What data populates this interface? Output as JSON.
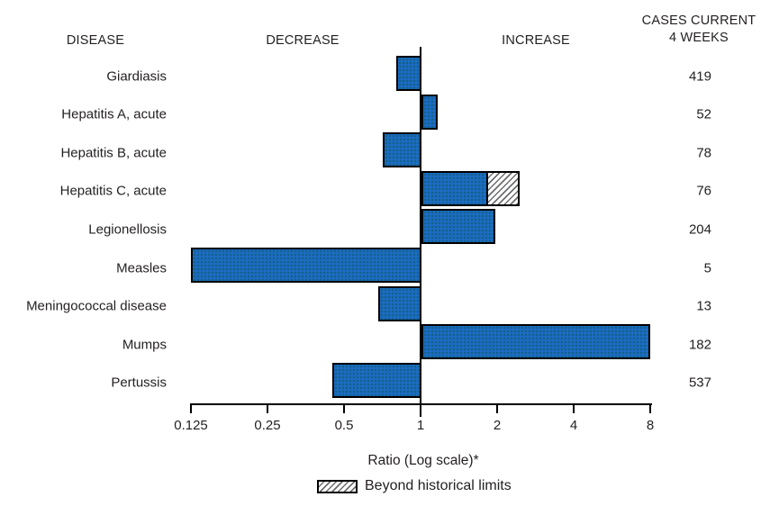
{
  "header": {
    "disease": "DISEASE",
    "decrease": "DECREASE",
    "increase": "INCREASE",
    "cases_line1": "CASES CURRENT",
    "cases_line2": "4 WEEKS"
  },
  "axis": {
    "label": "Ratio (Log scale)*",
    "tick_labels": [
      "0.125",
      "0.25",
      "0.5",
      "1",
      "2",
      "4",
      "8"
    ]
  },
  "legend": {
    "label": "Beyond historical limits"
  },
  "colors": {
    "bar_fill": "#1b6cc2",
    "bar_border": "#000000",
    "text": "#231f20"
  },
  "chart_data": {
    "type": "bar",
    "orientation": "horizontal",
    "scale": "log2",
    "xlabel": "Ratio (Log scale)*",
    "xticks": [
      0.125,
      0.25,
      0.5,
      1,
      2,
      4,
      8
    ],
    "xlim": [
      0.125,
      8
    ],
    "baseline": 1,
    "legend_entries": [
      "Beyond historical limits"
    ],
    "rows": [
      {
        "disease": "Giardiasis",
        "ratio": 0.8,
        "cases": 419,
        "beyond_limit": false,
        "beyond_limit_to": null
      },
      {
        "disease": "Hepatitis A, acute",
        "ratio": 1.17,
        "cases": 52,
        "beyond_limit": false,
        "beyond_limit_to": null
      },
      {
        "disease": "Hepatitis B, acute",
        "ratio": 0.71,
        "cases": 78,
        "beyond_limit": false,
        "beyond_limit_to": null
      },
      {
        "disease": "Hepatitis C, acute",
        "ratio": 1.85,
        "cases": 76,
        "beyond_limit": true,
        "beyond_limit_to": 2.45
      },
      {
        "disease": "Legionellosis",
        "ratio": 1.97,
        "cases": 204,
        "beyond_limit": false,
        "beyond_limit_to": null
      },
      {
        "disease": "Measles",
        "ratio": 0.125,
        "cases": 5,
        "beyond_limit": false,
        "beyond_limit_to": null
      },
      {
        "disease": "Meningococcal disease",
        "ratio": 0.68,
        "cases": 13,
        "beyond_limit": false,
        "beyond_limit_to": null
      },
      {
        "disease": "Mumps",
        "ratio": 8.0,
        "cases": 182,
        "beyond_limit": false,
        "beyond_limit_to": null
      },
      {
        "disease": "Pertussis",
        "ratio": 0.45,
        "cases": 537,
        "beyond_limit": false,
        "beyond_limit_to": null
      }
    ]
  }
}
